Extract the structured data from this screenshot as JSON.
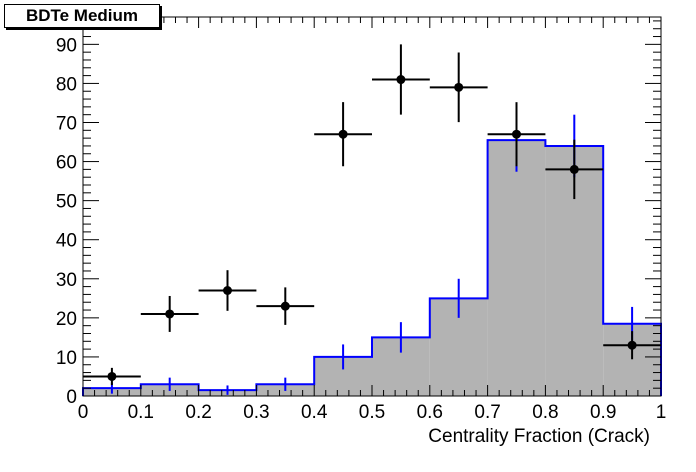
{
  "chart_data": {
    "type": "histogram",
    "title": "BDTe Medium",
    "xlabel": "Centrality Fraction (Crack)",
    "ylabel": "",
    "xlim": [
      0,
      1
    ],
    "ylim": [
      0,
      97
    ],
    "x_ticks": [
      "0",
      "0.1",
      "0.2",
      "0.3",
      "0.4",
      "0.5",
      "0.6",
      "0.7",
      "0.8",
      "0.9",
      "1"
    ],
    "y_ticks": [
      "0",
      "10",
      "20",
      "30",
      "40",
      "50",
      "60",
      "70",
      "80",
      "90"
    ],
    "bin_edges": [
      0,
      0.1,
      0.2,
      0.3,
      0.4,
      0.5,
      0.6,
      0.7,
      0.8,
      0.9,
      1.0
    ],
    "series": [
      {
        "kind": "filled-histogram",
        "fill_color": "#b3b3b3",
        "line_color": "#0000ff",
        "values": [
          2,
          3,
          1.5,
          3,
          10,
          15,
          25,
          65.5,
          64,
          18.5
        ],
        "errors": [
          1.4,
          1.7,
          1.2,
          1.7,
          3.2,
          3.9,
          5,
          8.1,
          8,
          4.3
        ]
      },
      {
        "kind": "data-points",
        "marker_color": "#000000",
        "x": [
          0.05,
          0.15,
          0.25,
          0.35,
          0.45,
          0.55,
          0.65,
          0.75,
          0.85,
          0.95
        ],
        "y": [
          5,
          21,
          27,
          23,
          67,
          81,
          79,
          67,
          58,
          13
        ],
        "yerr": [
          2.2,
          4.6,
          5.2,
          4.8,
          8.2,
          9,
          8.9,
          8.2,
          7.6,
          3.6
        ],
        "xerr": 0.05
      }
    ]
  }
}
